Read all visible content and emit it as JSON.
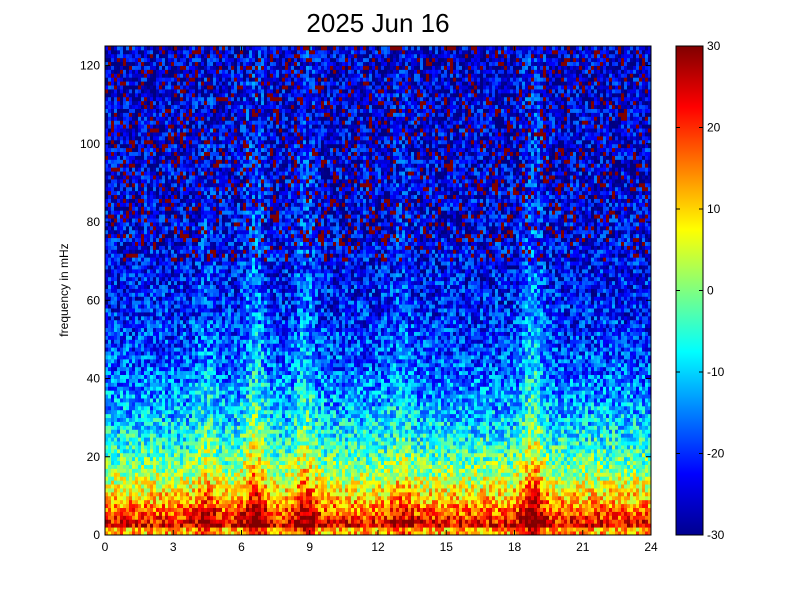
{
  "chart_data": {
    "type": "heatmap",
    "title": "2025 Jun 16",
    "xlabel": "",
    "ylabel": "frequency in mHz",
    "xlim": [
      0,
      24
    ],
    "ylim": [
      0,
      125
    ],
    "x_ticks": [
      0,
      3,
      6,
      9,
      12,
      15,
      18,
      21,
      24
    ],
    "y_ticks": [
      0,
      20,
      40,
      60,
      80,
      100,
      120
    ],
    "colorbar": {
      "range": [
        -30,
        30
      ],
      "ticks": [
        -30,
        -20,
        -10,
        0,
        10,
        20,
        30
      ],
      "colormap": "jet"
    },
    "grid": false,
    "description_of_values": "power level (colorbar units) per hour of day and frequency; strongest power below ~8 mHz across the whole day, elevated power bursts around hours 6.5, 9, and a sharp vertical band near hour 18.8; low power (blue) above ~80 mHz",
    "bands": [
      {
        "hour": 6.6,
        "strength": 1.0
      },
      {
        "hour": 8.8,
        "strength": 0.8
      },
      {
        "hour": 18.8,
        "strength": 1.0
      },
      {
        "hour": 4.5,
        "strength": 0.5
      },
      {
        "hour": 13.0,
        "strength": 0.4
      }
    ],
    "baseline_low_freq_peak_mHz": 5,
    "baseline_peak_level": 30,
    "high_freq_level": -25
  }
}
